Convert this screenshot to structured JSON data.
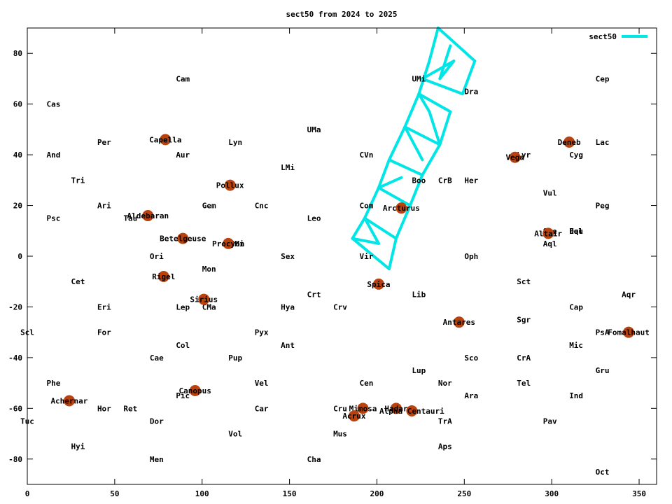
{
  "chart_data": {
    "type": "scatter",
    "title": "sect50 from 2024 to 2025",
    "xlabel": "",
    "ylabel": "",
    "xlim": [
      0,
      360
    ],
    "ylim": [
      -90,
      90
    ],
    "x_ticks": [
      0,
      50,
      100,
      150,
      200,
      250,
      300,
      350
    ],
    "y_ticks": [
      -80,
      -60,
      -40,
      -20,
      0,
      20,
      40,
      60,
      80
    ],
    "grid": false,
    "legend": {
      "position": "top-right",
      "entries": [
        {
          "name": "sect50",
          "color": "#00e5e5"
        }
      ]
    },
    "colors": {
      "series": "#00e5e5",
      "star": "#b8430f",
      "axis": "#000000"
    },
    "series": [
      {
        "name": "sect50",
        "segments": [
          [
            [
              235,
              90
            ],
            [
              256,
              77
            ]
          ],
          [
            [
              235,
              90
            ],
            [
              230,
              77
            ]
          ],
          [
            [
              256,
              77
            ],
            [
              249,
              64
            ]
          ],
          [
            [
              230,
              77
            ],
            [
              224,
              64
            ]
          ],
          [
            [
              242,
              83
            ],
            [
              236,
              70
            ]
          ],
          [
            [
              226,
              70
            ],
            [
              249,
              64
            ]
          ],
          [
            [
              224,
              64
            ],
            [
              242,
              57
            ]
          ],
          [
            [
              242,
              57
            ],
            [
              236,
              44
            ]
          ],
          [
            [
              224,
              64
            ],
            [
              216,
              51
            ]
          ],
          [
            [
              216,
              51
            ],
            [
              236,
              44
            ]
          ],
          [
            [
              216,
              51
            ],
            [
              207,
              38
            ]
          ],
          [
            [
              207,
              38
            ],
            [
              226,
              32
            ]
          ],
          [
            [
              236,
              44
            ],
            [
              226,
              32
            ]
          ],
          [
            [
              207,
              38
            ],
            [
              201,
              27
            ]
          ],
          [
            [
              201,
              27
            ],
            [
              219,
              20
            ]
          ],
          [
            [
              226,
              32
            ],
            [
              219,
              20
            ]
          ],
          [
            [
              201,
              27
            ],
            [
              193,
              15
            ]
          ],
          [
            [
              193,
              15
            ],
            [
              211,
              7
            ]
          ],
          [
            [
              219,
              20
            ],
            [
              211,
              7
            ]
          ],
          [
            [
              193,
              15
            ],
            [
              186,
              7
            ]
          ],
          [
            [
              186,
              7
            ],
            [
              207,
              -5
            ]
          ],
          [
            [
              211,
              7
            ],
            [
              207,
              -5
            ]
          ],
          [
            [
              236,
              70
            ],
            [
              244,
              77
            ]
          ],
          [
            [
              226,
              70
            ],
            [
              244,
              77
            ]
          ],
          [
            [
              230,
              57
            ],
            [
              236,
              44
            ]
          ],
          [
            [
              224,
              64
            ],
            [
              230,
              57
            ]
          ],
          [
            [
              216,
              51
            ],
            [
              226,
              38
            ]
          ],
          [
            [
              201,
              27
            ],
            [
              214,
              31
            ]
          ],
          [
            [
              193,
              15
            ],
            [
              201,
              5
            ]
          ],
          [
            [
              186,
              7
            ],
            [
              201,
              5
            ]
          ]
        ]
      }
    ],
    "bright_stars": [
      {
        "name": "Capella",
        "x": 79,
        "y": 46
      },
      {
        "name": "Aldebaran",
        "x": 69,
        "y": 16
      },
      {
        "name": "Betelgeuse",
        "x": 89,
        "y": 7
      },
      {
        "name": "Rigel",
        "x": 78,
        "y": -8
      },
      {
        "name": "Sirius",
        "x": 101,
        "y": -17
      },
      {
        "name": "Procyon",
        "x": 115,
        "y": 5
      },
      {
        "name": "Pollux",
        "x": 116,
        "y": 28
      },
      {
        "name": "Canopus",
        "x": 96,
        "y": -53
      },
      {
        "name": "Achernar",
        "x": 24,
        "y": -57
      },
      {
        "name": "Arcturus",
        "x": 214,
        "y": 19
      },
      {
        "name": "Spica",
        "x": 201,
        "y": -11
      },
      {
        "name": "Antares",
        "x": 247,
        "y": -26
      },
      {
        "name": "Mimosa",
        "x": 192,
        "y": -60
      },
      {
        "name": "Acrux",
        "x": 187,
        "y": -63
      },
      {
        "name": "Hadar",
        "x": 211,
        "y": -60
      },
      {
        "name": "Alpha Centauri",
        "x": 220,
        "y": -61
      },
      {
        "name": "Vega",
        "x": 279,
        "y": 39
      },
      {
        "name": "Deneb",
        "x": 310,
        "y": 45
      },
      {
        "name": "Altair",
        "x": 298,
        "y": 9
      },
      {
        "name": "Fomalhaut",
        "x": 344,
        "y": -30
      }
    ],
    "annotations": [
      {
        "text": "Cam",
        "x": 89,
        "y": 70
      },
      {
        "text": "Cas",
        "x": 15,
        "y": 60
      },
      {
        "text": "Per",
        "x": 44,
        "y": 45
      },
      {
        "text": "And",
        "x": 15,
        "y": 40
      },
      {
        "text": "Aur",
        "x": 89,
        "y": 40
      },
      {
        "text": "Lyn",
        "x": 119,
        "y": 45
      },
      {
        "text": "UMa",
        "x": 164,
        "y": 50
      },
      {
        "text": "LMi",
        "x": 149,
        "y": 35
      },
      {
        "text": "Tri",
        "x": 29,
        "y": 30
      },
      {
        "text": "Ari",
        "x": 44,
        "y": 20
      },
      {
        "text": "Gem",
        "x": 104,
        "y": 20
      },
      {
        "text": "Cnc",
        "x": 134,
        "y": 20
      },
      {
        "text": "Psc",
        "x": 15,
        "y": 15
      },
      {
        "text": "Tau",
        "x": 59,
        "y": 15
      },
      {
        "text": "Leo",
        "x": 164,
        "y": 15
      },
      {
        "text": "CMi",
        "x": 120,
        "y": 5
      },
      {
        "text": "Ori",
        "x": 74,
        "y": 0
      },
      {
        "text": "Sex",
        "x": 149,
        "y": 0
      },
      {
        "text": "Mon",
        "x": 104,
        "y": -5
      },
      {
        "text": "Cet",
        "x": 29,
        "y": -10
      },
      {
        "text": "Crt",
        "x": 164,
        "y": -15
      },
      {
        "text": "Eri",
        "x": 44,
        "y": -20
      },
      {
        "text": "Lep",
        "x": 89,
        "y": -20
      },
      {
        "text": "CMa",
        "x": 104,
        "y": -20
      },
      {
        "text": "Hya",
        "x": 149,
        "y": -20
      },
      {
        "text": "Crv",
        "x": 179,
        "y": -20
      },
      {
        "text": "Scl",
        "x": 0,
        "y": -30
      },
      {
        "text": "For",
        "x": 44,
        "y": -30
      },
      {
        "text": "Pyx",
        "x": 134,
        "y": -30
      },
      {
        "text": "Col",
        "x": 89,
        "y": -35
      },
      {
        "text": "Ant",
        "x": 149,
        "y": -35
      },
      {
        "text": "Cae",
        "x": 74,
        "y": -40
      },
      {
        "text": "Pup",
        "x": 119,
        "y": -40
      },
      {
        "text": "Phe",
        "x": 15,
        "y": -50
      },
      {
        "text": "Vel",
        "x": 134,
        "y": -50
      },
      {
        "text": "Pic",
        "x": 89,
        "y": -55
      },
      {
        "text": "Hor",
        "x": 44,
        "y": -60
      },
      {
        "text": "Ret",
        "x": 59,
        "y": -60
      },
      {
        "text": "Car",
        "x": 134,
        "y": -60
      },
      {
        "text": "Tuc",
        "x": 0,
        "y": -65
      },
      {
        "text": "Dor",
        "x": 74,
        "y": -65
      },
      {
        "text": "Vol",
        "x": 119,
        "y": -70
      },
      {
        "text": "Hyi",
        "x": 29,
        "y": -75
      },
      {
        "text": "Men",
        "x": 74,
        "y": -80
      },
      {
        "text": "Cha",
        "x": 164,
        "y": -80
      },
      {
        "text": "UMi",
        "x": 224,
        "y": 70
      },
      {
        "text": "Dra",
        "x": 254,
        "y": 65
      },
      {
        "text": "CVn",
        "x": 194,
        "y": 40
      },
      {
        "text": "Boo",
        "x": 224,
        "y": 30
      },
      {
        "text": "CrB",
        "x": 239,
        "y": 30
      },
      {
        "text": "Her",
        "x": 254,
        "y": 30
      },
      {
        "text": "Com",
        "x": 194,
        "y": 20
      },
      {
        "text": "Vir",
        "x": 194,
        "y": 0
      },
      {
        "text": "Oph",
        "x": 254,
        "y": 0
      },
      {
        "text": "Lib",
        "x": 224,
        "y": -15
      },
      {
        "text": "Cen",
        "x": 194,
        "y": -50
      },
      {
        "text": "Lup",
        "x": 224,
        "y": -45
      },
      {
        "text": "Cru",
        "x": 179,
        "y": -60
      },
      {
        "text": "Mus",
        "x": 179,
        "y": -70
      },
      {
        "text": "Nor",
        "x": 239,
        "y": -50
      },
      {
        "text": "Ara",
        "x": 254,
        "y": -55
      },
      {
        "text": "Sco",
        "x": 254,
        "y": -40
      },
      {
        "text": "TrA",
        "x": 239,
        "y": -65
      },
      {
        "text": "Aps",
        "x": 239,
        "y": -75
      },
      {
        "text": "Lyr",
        "x": 284,
        "y": 40
      },
      {
        "text": "Cyg",
        "x": 314,
        "y": 40
      },
      {
        "text": "Vul",
        "x": 299,
        "y": 25
      },
      {
        "text": "Sge",
        "x": 299,
        "y": 10
      },
      {
        "text": "Aql",
        "x": 299,
        "y": 5
      },
      {
        "text": "Del",
        "x": 314,
        "y": 10
      },
      {
        "text": "Equ",
        "x": 314,
        "y": 10
      },
      {
        "text": "Sct",
        "x": 284,
        "y": -10
      },
      {
        "text": "Sgr",
        "x": 284,
        "y": -25
      },
      {
        "text": "CrA",
        "x": 284,
        "y": -40
      },
      {
        "text": "Tel",
        "x": 284,
        "y": -50
      },
      {
        "text": "Pav",
        "x": 299,
        "y": -65
      },
      {
        "text": "Ind",
        "x": 314,
        "y": -55
      },
      {
        "text": "Cap",
        "x": 314,
        "y": -20
      },
      {
        "text": "Mic",
        "x": 314,
        "y": -35
      },
      {
        "text": "Cep",
        "x": 329,
        "y": 70
      },
      {
        "text": "Lac",
        "x": 329,
        "y": 45
      },
      {
        "text": "Peg",
        "x": 329,
        "y": 20
      },
      {
        "text": "Aqr",
        "x": 344,
        "y": -15
      },
      {
        "text": "PsA",
        "x": 329,
        "y": -30
      },
      {
        "text": "Gru",
        "x": 329,
        "y": -45
      },
      {
        "text": "Oct",
        "x": 329,
        "y": -85
      }
    ]
  }
}
